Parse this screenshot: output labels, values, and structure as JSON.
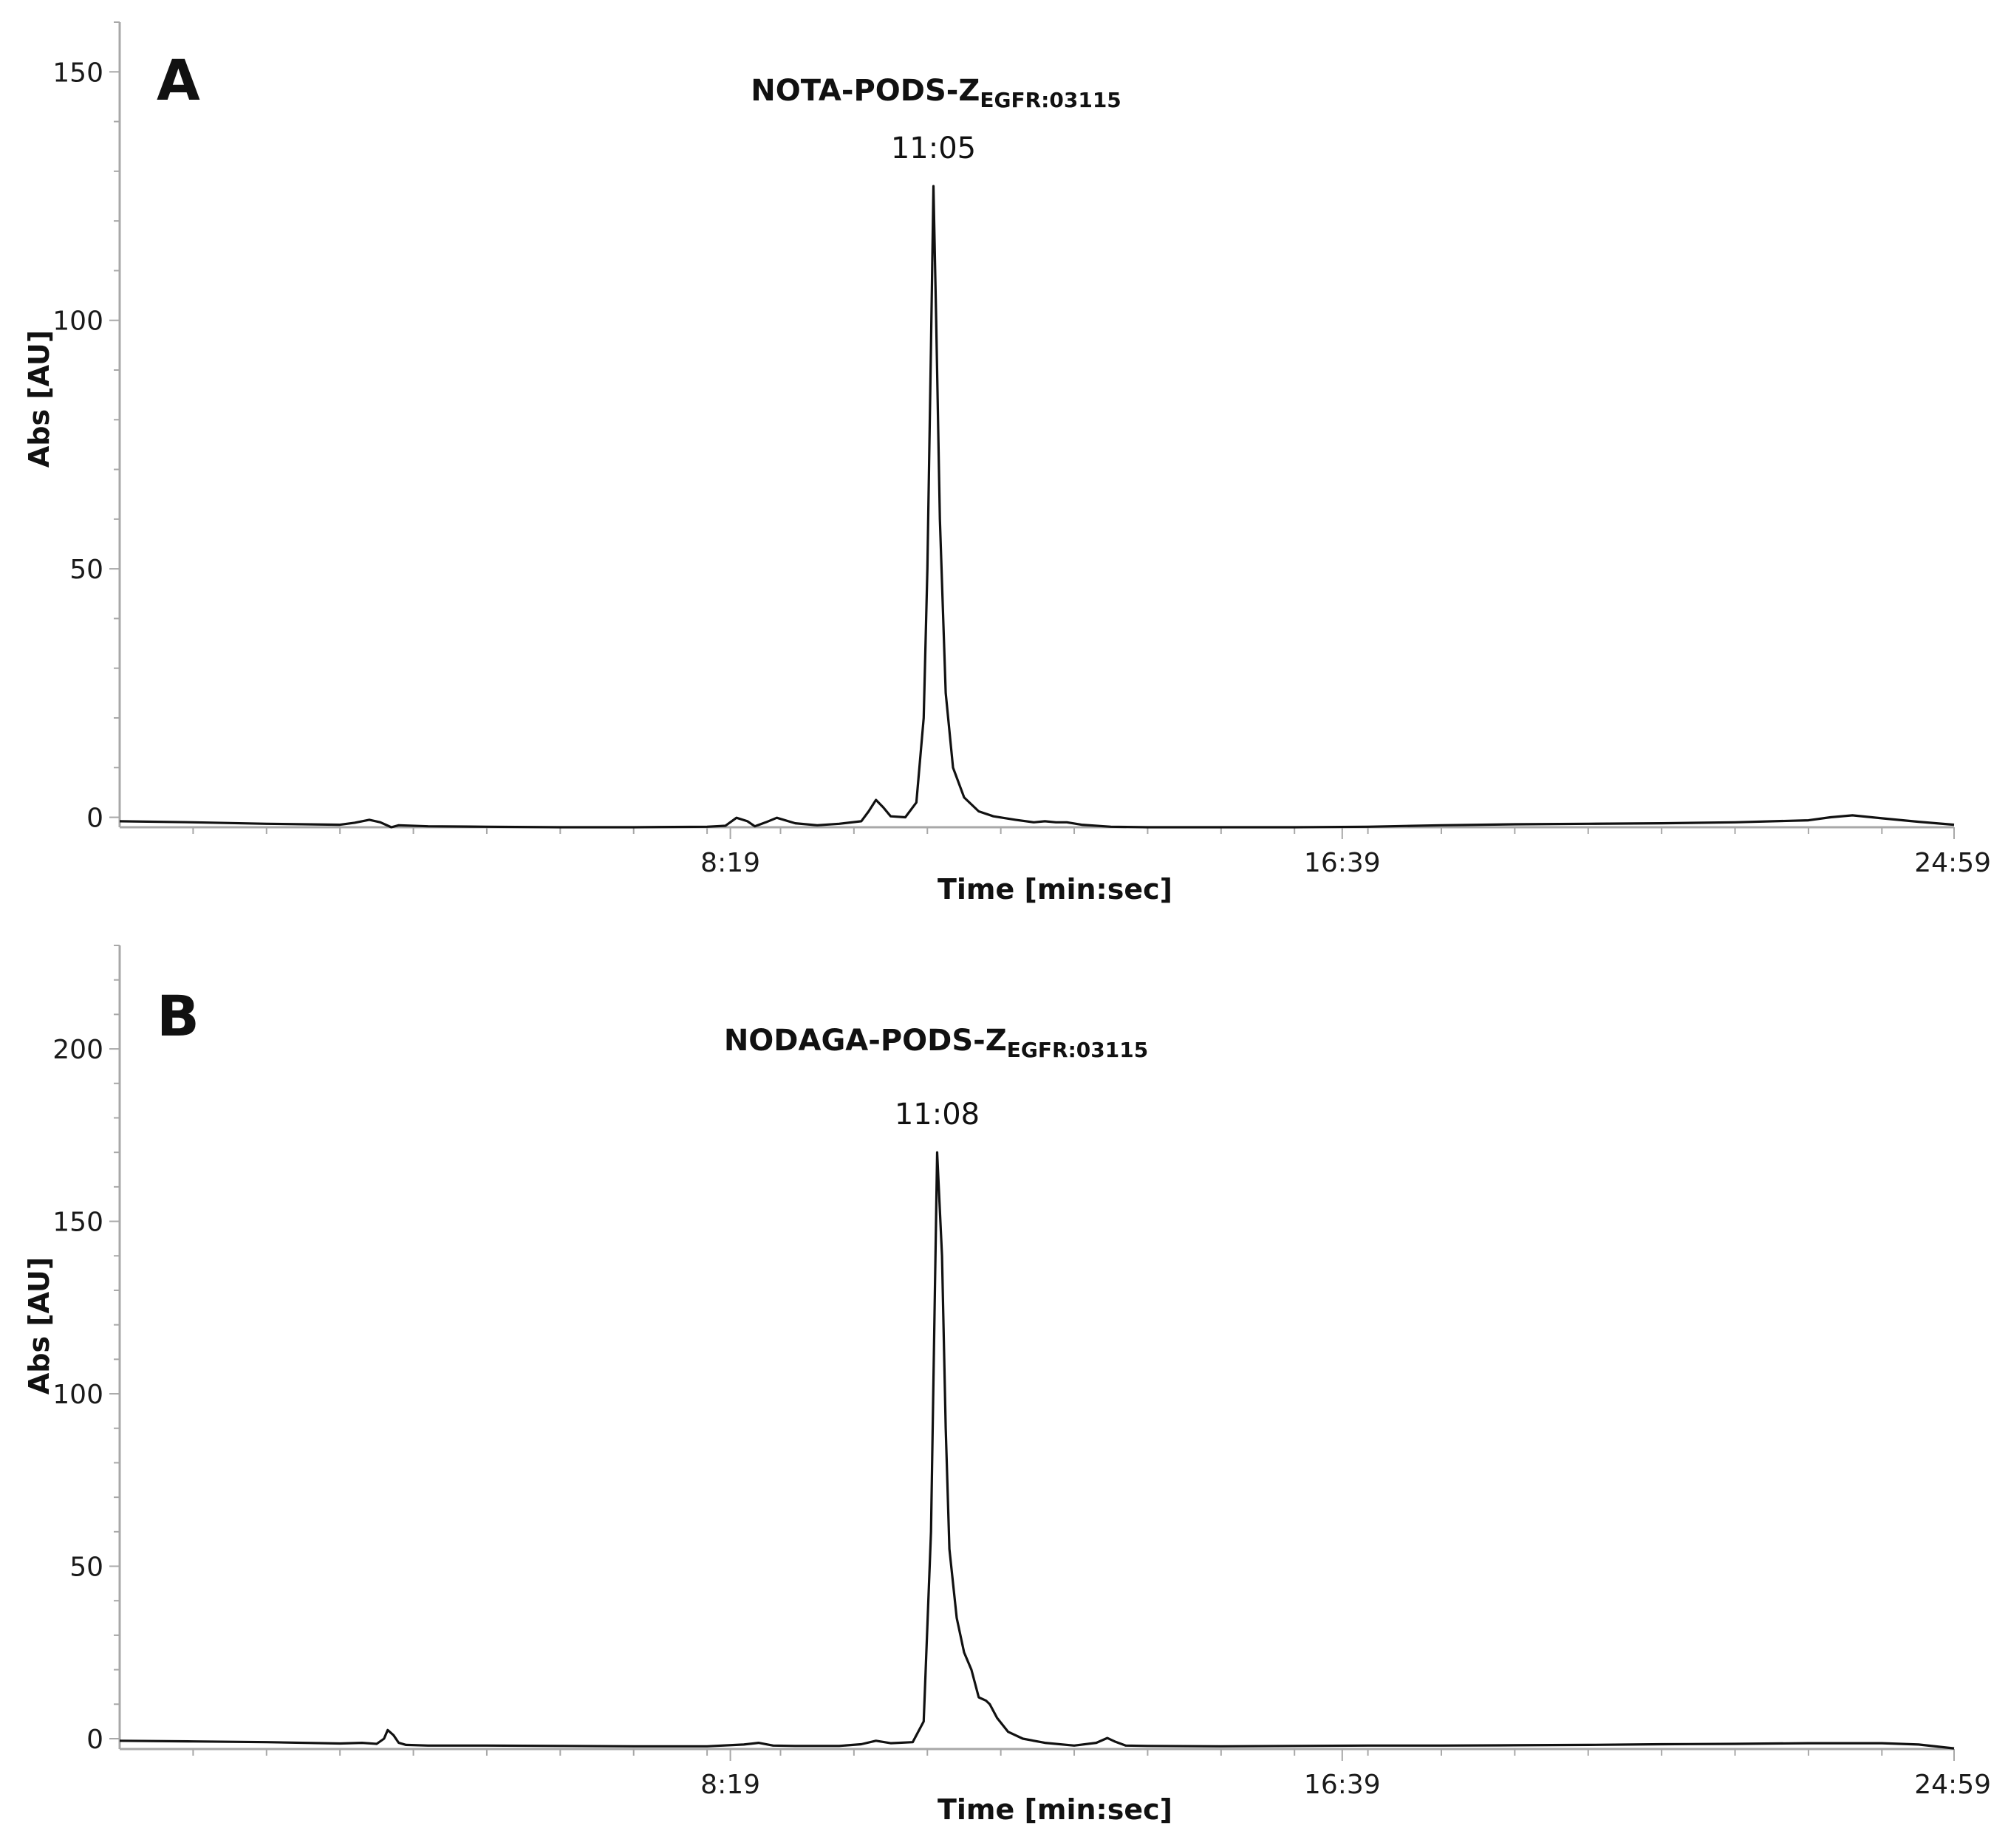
{
  "chart_data": [
    {
      "type": "line",
      "panel_label": "A",
      "compound_main": "NOTA-PODS-Z",
      "compound_sub": "EGFR:03115",
      "peak_label": "11:05",
      "peak_x": 11.083,
      "xlabel": "Time [min:sec]",
      "ylabel": "Abs [AU]",
      "xlim": [
        0,
        24.983
      ],
      "ylim": [
        -2,
        160
      ],
      "x_ticks": [
        8.317,
        16.65,
        24.983
      ],
      "x_tick_labels": [
        "8:19",
        "16:39",
        "24:59"
      ],
      "y_ticks": [
        0,
        50,
        100,
        150
      ],
      "y_tick_labels": [
        "0",
        "50",
        "100",
        "150"
      ],
      "grid": false,
      "series": [
        {
          "x": [
            0,
            1,
            2,
            3,
            3.2,
            3.4,
            3.55,
            3.7,
            3.8,
            4.2,
            5,
            6,
            7,
            8,
            8.25,
            8.4,
            8.55,
            8.65,
            8.8,
            8.95,
            9.2,
            9.5,
            9.8,
            10.1,
            10.2,
            10.3,
            10.4,
            10.5,
            10.7,
            10.85,
            10.95,
            11.0,
            11.05,
            11.083,
            11.12,
            11.17,
            11.25,
            11.35,
            11.5,
            11.7,
            11.9,
            12.2,
            12.45,
            12.6,
            12.75,
            12.9,
            13.1,
            13.5,
            14,
            15,
            16,
            17,
            18,
            19,
            20,
            21,
            22,
            23,
            23.3,
            23.6,
            24,
            24.5,
            24.983
          ],
          "y": [
            -0.8,
            -1.0,
            -1.3,
            -1.5,
            -1.1,
            -0.5,
            -1.0,
            -2.0,
            -1.6,
            -1.8,
            -1.9,
            -2.0,
            -2.0,
            -1.9,
            -1.7,
            -0.1,
            -0.8,
            -1.8,
            -1.0,
            -0.1,
            -1.2,
            -1.6,
            -1.3,
            -0.8,
            1.2,
            3.5,
            2.0,
            0.2,
            0.0,
            3.0,
            20,
            50,
            95,
            127,
            100,
            60,
            25,
            10,
            4,
            1.2,
            0.2,
            -0.5,
            -1.0,
            -0.8,
            -1.0,
            -1.0,
            -1.5,
            -1.9,
            -2.0,
            -2.0,
            -2.0,
            -1.9,
            -1.6,
            -1.4,
            -1.3,
            -1.2,
            -1.0,
            -0.6,
            0.0,
            0.4,
            -0.2,
            -0.9,
            -1.5
          ]
        }
      ]
    },
    {
      "type": "line",
      "panel_label": "B",
      "compound_main": "NODAGA-PODS-Z",
      "compound_sub": "EGFR:03115",
      "peak_label": "11:08",
      "peak_x": 11.133,
      "xlabel": "Time [min:sec]",
      "ylabel": "Abs [AU]",
      "xlim": [
        0,
        24.983
      ],
      "ylim": [
        -3,
        230
      ],
      "x_ticks": [
        8.317,
        16.65,
        24.983
      ],
      "x_tick_labels": [
        "8:19",
        "16:39",
        "24:59"
      ],
      "y_ticks": [
        0,
        50,
        100,
        150,
        200
      ],
      "y_tick_labels": [
        "0",
        "50",
        "100",
        "150",
        "200"
      ],
      "grid": false,
      "series": [
        {
          "x": [
            0,
            1,
            2,
            3,
            3.3,
            3.5,
            3.6,
            3.65,
            3.73,
            3.8,
            3.9,
            4.2,
            5,
            6,
            7,
            8,
            8.5,
            8.7,
            8.9,
            9.2,
            9.8,
            10.1,
            10.3,
            10.5,
            10.8,
            10.95,
            11.05,
            11.133,
            11.2,
            11.25,
            11.3,
            11.4,
            11.5,
            11.6,
            11.7,
            11.8,
            11.85,
            11.95,
            12.1,
            12.3,
            12.6,
            13.0,
            13.3,
            13.45,
            13.55,
            13.7,
            14,
            15,
            16,
            17,
            18,
            19,
            20,
            21,
            22,
            23,
            24,
            24.5,
            24.983
          ],
          "y": [
            -0.6,
            -0.8,
            -1.0,
            -1.4,
            -1.2,
            -1.5,
            0.0,
            2.5,
            1.0,
            -1.2,
            -1.8,
            -2.0,
            -2.0,
            -2.1,
            -2.2,
            -2.2,
            -1.7,
            -1.2,
            -2.0,
            -2.1,
            -2.1,
            -1.6,
            -0.6,
            -1.3,
            -1.0,
            5,
            60,
            170,
            140,
            90,
            55,
            35,
            25,
            20,
            12,
            11,
            10,
            6,
            2,
            0,
            -1.2,
            -2.0,
            -1.2,
            0.2,
            -0.8,
            -2.0,
            -2.1,
            -2.2,
            -2.1,
            -2.0,
            -2.0,
            -1.9,
            -1.8,
            -1.6,
            -1.5,
            -1.3,
            -1.3,
            -1.7,
            -2.8
          ]
        }
      ]
    }
  ]
}
